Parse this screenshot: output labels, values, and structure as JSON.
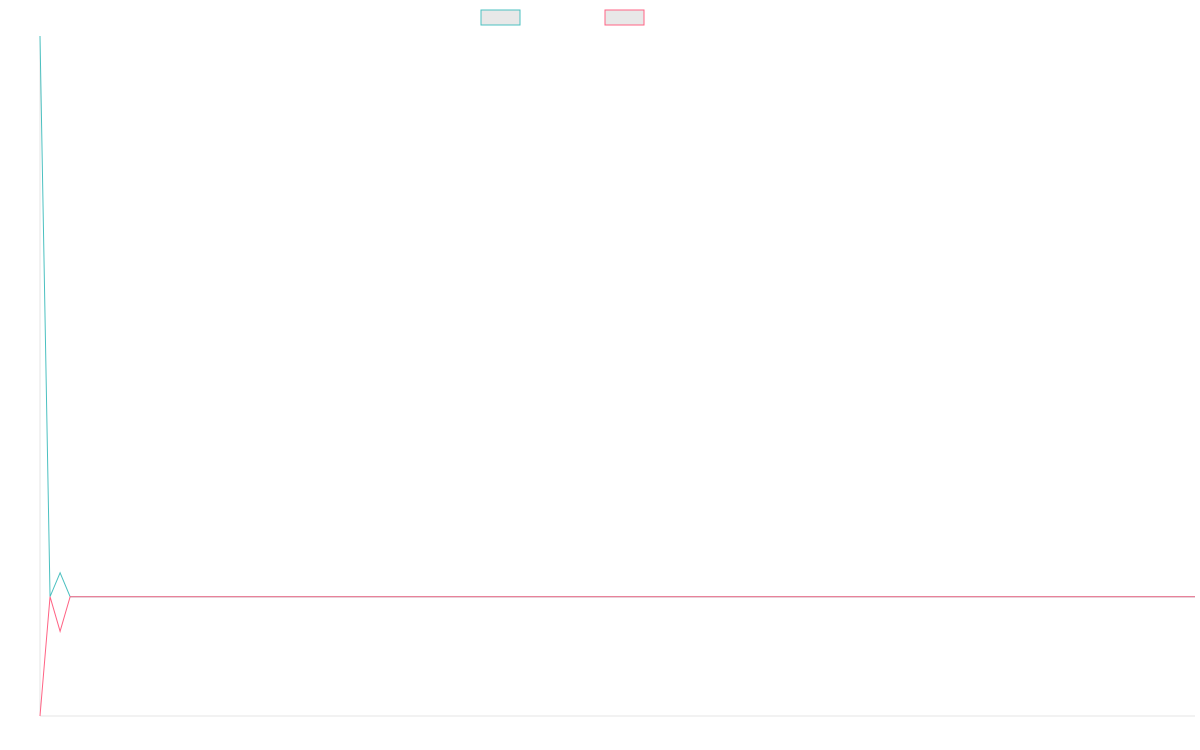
{
  "chart_data": {
    "type": "line",
    "x": [
      0,
      1,
      2,
      3,
      4,
      5,
      6,
      7,
      8,
      9,
      10,
      11,
      12,
      13,
      14,
      15,
      16,
      17,
      18,
      19,
      20,
      21,
      22,
      23,
      24,
      25,
      26,
      27,
      28,
      29,
      30,
      31,
      32,
      33,
      34,
      35,
      36,
      37,
      38,
      39,
      40,
      41,
      42,
      43,
      44,
      45,
      46,
      47,
      48,
      49,
      50,
      51,
      52,
      53,
      54,
      55,
      56,
      57,
      58,
      59,
      60,
      61,
      62,
      63,
      64,
      65,
      66,
      67,
      68,
      69,
      70,
      71,
      72,
      73,
      74,
      75,
      76,
      77,
      78,
      79,
      80,
      81,
      82,
      83,
      84,
      85,
      86,
      87,
      88,
      89,
      90,
      91,
      92,
      93,
      94,
      95,
      96,
      97,
      98,
      99,
      100,
      101,
      102,
      103,
      104,
      105,
      106,
      107,
      108,
      109,
      110,
      111,
      112,
      113,
      114,
      115
    ],
    "ylim": [
      -1.0,
      4.7
    ],
    "series": [
      {
        "color": "#4bc0c0",
        "values": [
          4.7,
          0.0,
          0.2,
          0.0,
          0.0,
          0.0,
          0.0,
          0.0,
          0.0,
          0.0,
          0.0,
          0.0,
          0.0,
          0.0,
          0.0,
          0.0,
          0.0,
          0.0,
          0.0,
          0.0,
          0.0,
          0.0,
          0.0,
          0.0,
          0.0,
          0.0,
          0.0,
          0.0,
          0.0,
          0.0,
          0.0,
          0.0,
          0.0,
          0.0,
          0.0,
          0.0,
          0.0,
          0.0,
          0.0,
          0.0,
          0.0,
          0.0,
          0.0,
          0.0,
          0.0,
          0.0,
          0.0,
          0.0,
          0.0,
          0.0,
          0.0,
          0.0,
          0.0,
          0.0,
          0.0,
          0.0,
          0.0,
          0.0,
          0.0,
          0.0,
          0.0,
          0.0,
          0.0,
          0.0,
          0.0,
          0.0,
          0.0,
          0.0,
          0.0,
          0.0,
          0.0,
          0.0,
          0.0,
          0.0,
          0.0,
          0.0,
          0.0,
          0.0,
          0.0,
          0.0,
          0.0,
          0.0,
          0.0,
          0.0,
          0.0,
          0.0,
          0.0,
          0.0,
          0.0,
          0.0,
          0.0,
          0.0,
          0.0,
          0.0,
          0.0,
          0.0,
          0.0,
          0.0,
          0.0,
          0.0,
          0.0,
          0.0,
          0.0,
          0.0,
          0.0,
          0.0,
          0.0,
          0.0,
          0.0,
          0.0,
          0.0,
          0.0,
          0.0,
          0.0,
          0.0,
          0.0
        ]
      },
      {
        "color": "#ff6384",
        "values": [
          -1.0,
          0.0,
          -0.29,
          0.0,
          0.0,
          0.0,
          0.0,
          0.0,
          0.0,
          0.0,
          0.0,
          0.0,
          0.0,
          0.0,
          0.0,
          0.0,
          0.0,
          0.0,
          0.0,
          0.0,
          0.0,
          0.0,
          0.0,
          0.0,
          0.0,
          0.0,
          0.0,
          0.0,
          0.0,
          0.0,
          0.0,
          0.0,
          0.0,
          0.0,
          0.0,
          0.0,
          0.0,
          0.0,
          0.0,
          0.0,
          0.0,
          0.0,
          0.0,
          0.0,
          0.0,
          0.0,
          0.0,
          0.0,
          0.0,
          0.0,
          0.0,
          0.0,
          0.0,
          0.0,
          0.0,
          0.0,
          0.0,
          0.0,
          0.0,
          0.0,
          0.0,
          0.0,
          0.0,
          0.0,
          0.0,
          0.0,
          0.0,
          0.0,
          0.0,
          0.0,
          0.0,
          0.0,
          0.0,
          0.0,
          0.0,
          0.0,
          0.0,
          0.0,
          0.0,
          0.0,
          0.0,
          0.0,
          0.0,
          0.0,
          0.0,
          0.0,
          0.0,
          0.0,
          0.0,
          0.0,
          0.0,
          0.0,
          0.0,
          0.0,
          0.0,
          0.0,
          0.0,
          0.0,
          0.0,
          0.0,
          0.0,
          0.0,
          0.0,
          0.0,
          0.0,
          0.0,
          0.0,
          0.0,
          0.0,
          0.0,
          0.0,
          0.0,
          0.0,
          0.0,
          0.0,
          0.0
        ]
      }
    ],
    "legend": "top-center",
    "grid": false
  }
}
